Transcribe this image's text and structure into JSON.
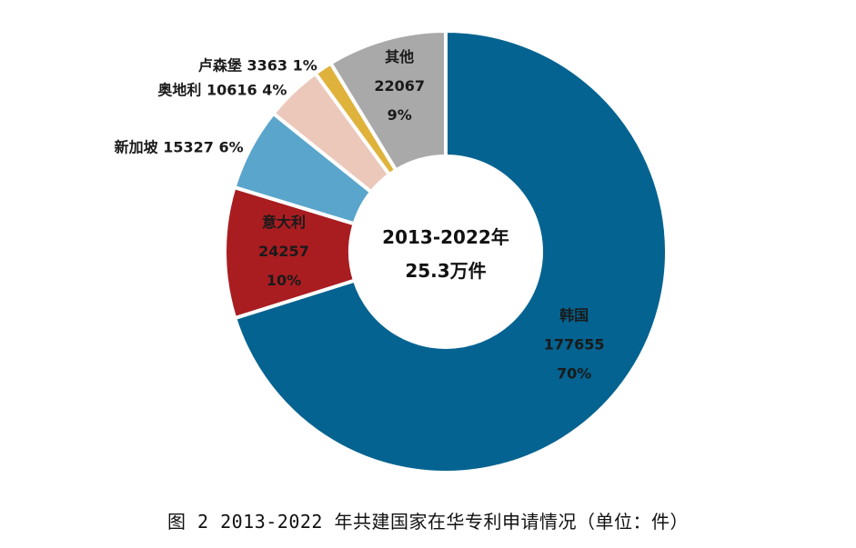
{
  "chart_data": {
    "type": "pie",
    "variant": "donut",
    "center_label": {
      "line1": "2013-2022年",
      "line2": "25.3万件"
    },
    "slices": [
      {
        "name": "韩国",
        "value": 177655,
        "percent_label": "70%",
        "value_label": "177655",
        "color": "#046390"
      },
      {
        "name": "意大利",
        "value": 24257,
        "percent_label": "10%",
        "value_label": "24257",
        "color": "#a91d21"
      },
      {
        "name": "新加坡",
        "value": 15327,
        "percent_label": "6%",
        "value_label": "15327",
        "color": "#5aa5cc"
      },
      {
        "name": "奥地利",
        "value": 10616,
        "percent_label": "4%",
        "value_label": "10616",
        "color": "#ecc8bb"
      },
      {
        "name": "卢森堡",
        "value": 3363,
        "percent_label": "1%",
        "value_label": "3363",
        "color": "#dfb33b"
      },
      {
        "name": "其他",
        "value": 22067,
        "percent_label": "9%",
        "value_label": "22067",
        "color": "#a9a9a9"
      }
    ],
    "title": "图 2 2013-2022 年共建国家在华专利申请情况（单位：件）"
  }
}
